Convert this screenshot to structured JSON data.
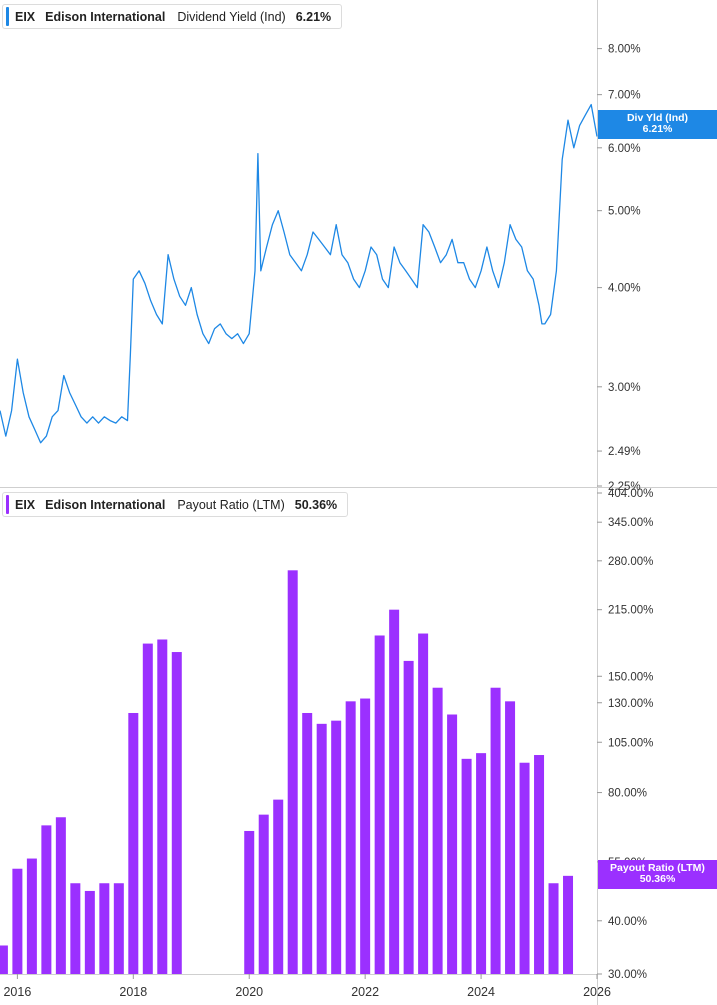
{
  "top_legend": {
    "ticker": "EIX",
    "company": "Edison International",
    "metric": "Dividend Yield (Ind)",
    "value": "6.21%"
  },
  "bottom_legend": {
    "ticker": "EIX",
    "company": "Edison International",
    "metric": "Payout Ratio (LTM)",
    "value": "50.36%"
  },
  "top_callout": {
    "label": "Div Yld (Ind)",
    "value": "6.21%"
  },
  "bottom_callout": {
    "label": "Payout Ratio (LTM)",
    "value": "50.36%"
  },
  "colors": {
    "line": "#1e88e5",
    "bars": "#9b30ff",
    "callout_top": "#1e88e5",
    "callout_bottom": "#9b30ff"
  },
  "chart_data": [
    {
      "type": "line",
      "title": "EIX Edison International Dividend Yield (Ind)",
      "scale": "log",
      "ylim": [
        2.25,
        9.0
      ],
      "y_ticks": [
        8.0,
        7.0,
        6.0,
        5.0,
        4.0,
        3.0,
        2.49,
        2.25
      ],
      "y_tick_labels": [
        "8.00%",
        "7.00%",
        "6.00%",
        "5.00%",
        "4.00%",
        "3.00%",
        "2.49%",
        "2.25%"
      ],
      "series": [
        {
          "name": "Dividend Yield (Ind)",
          "x": [
            2015.7,
            2015.8,
            2015.9,
            2016.0,
            2016.1,
            2016.2,
            2016.3,
            2016.4,
            2016.5,
            2016.6,
            2016.7,
            2016.8,
            2016.9,
            2017.0,
            2017.1,
            2017.2,
            2017.3,
            2017.4,
            2017.5,
            2017.6,
            2017.7,
            2017.8,
            2017.9,
            2017.95,
            2018.0,
            2018.1,
            2018.2,
            2018.3,
            2018.4,
            2018.5,
            2018.6,
            2018.7,
            2018.8,
            2018.9,
            2019.0,
            2019.1,
            2019.2,
            2019.3,
            2019.4,
            2019.5,
            2019.6,
            2019.7,
            2019.8,
            2019.9,
            2020.0,
            2020.1,
            2020.15,
            2020.2,
            2020.3,
            2020.4,
            2020.5,
            2020.6,
            2020.7,
            2020.8,
            2020.9,
            2021.0,
            2021.1,
            2021.2,
            2021.3,
            2021.4,
            2021.5,
            2021.6,
            2021.7,
            2021.8,
            2021.9,
            2022.0,
            2022.1,
            2022.2,
            2022.3,
            2022.4,
            2022.5,
            2022.6,
            2022.7,
            2022.8,
            2022.9,
            2023.0,
            2023.1,
            2023.2,
            2023.3,
            2023.4,
            2023.5,
            2023.6,
            2023.7,
            2023.8,
            2023.9,
            2024.0,
            2024.1,
            2024.2,
            2024.3,
            2024.4,
            2024.5,
            2024.6,
            2024.7,
            2024.8,
            2024.9,
            2025.0,
            2025.05,
            2025.1,
            2025.2,
            2025.3,
            2025.4,
            2025.5,
            2025.6,
            2025.7,
            2025.8,
            2025.9,
            2026.0
          ],
          "values": [
            2.8,
            2.6,
            2.8,
            3.25,
            2.95,
            2.75,
            2.65,
            2.55,
            2.6,
            2.75,
            2.8,
            3.1,
            2.95,
            2.85,
            2.75,
            2.7,
            2.75,
            2.7,
            2.75,
            2.72,
            2.7,
            2.75,
            2.72,
            3.3,
            4.1,
            4.2,
            4.05,
            3.85,
            3.7,
            3.6,
            4.4,
            4.1,
            3.9,
            3.8,
            4.0,
            3.7,
            3.5,
            3.4,
            3.55,
            3.6,
            3.5,
            3.45,
            3.5,
            3.4,
            3.5,
            4.2,
            5.9,
            4.2,
            4.5,
            4.8,
            5.0,
            4.7,
            4.4,
            4.3,
            4.2,
            4.4,
            4.7,
            4.6,
            4.5,
            4.4,
            4.8,
            4.4,
            4.3,
            4.1,
            4.0,
            4.2,
            4.5,
            4.4,
            4.1,
            4.0,
            4.5,
            4.3,
            4.2,
            4.1,
            4.0,
            4.8,
            4.7,
            4.5,
            4.3,
            4.4,
            4.6,
            4.3,
            4.3,
            4.1,
            4.0,
            4.2,
            4.5,
            4.2,
            4.0,
            4.3,
            4.8,
            4.6,
            4.5,
            4.2,
            4.1,
            3.8,
            3.6,
            3.6,
            3.7,
            4.2,
            5.8,
            6.5,
            6.0,
            6.4,
            6.6,
            6.8,
            6.2
          ]
        }
      ],
      "current_value": 6.21
    },
    {
      "type": "bar",
      "title": "EIX Edison International Payout Ratio (LTM)",
      "scale": "log",
      "ylim": [
        30,
        404
      ],
      "y_ticks": [
        404,
        345,
        280,
        215,
        150,
        130,
        105,
        80,
        55,
        40,
        30
      ],
      "y_tick_labels": [
        "404.00%",
        "345.00%",
        "280.00%",
        "215.00%",
        "150.00%",
        "130.00%",
        "105.00%",
        "80.00%",
        "55.00%",
        "40.00%",
        "30.00%"
      ],
      "x_ticks": [
        2016,
        2018,
        2020,
        2022,
        2024,
        2026
      ],
      "x_tick_labels": [
        "2016",
        "2018",
        "2020",
        "2022",
        "2024",
        "2026"
      ],
      "xlim": [
        2015.7,
        2026.0
      ],
      "series": [
        {
          "name": "Payout Ratio (LTM)",
          "x": [
            2015.75,
            2016.0,
            2016.25,
            2016.5,
            2016.75,
            2017.0,
            2017.25,
            2017.5,
            2017.75,
            2018.0,
            2018.25,
            2018.5,
            2018.75,
            2020.0,
            2020.25,
            2020.5,
            2020.75,
            2021.0,
            2021.25,
            2021.5,
            2021.75,
            2022.0,
            2022.25,
            2022.5,
            2022.75,
            2023.0,
            2023.25,
            2023.5,
            2023.75,
            2024.0,
            2024.25,
            2024.5,
            2024.75,
            2025.0,
            2025.25,
            2025.5
          ],
          "values": [
            35,
            53,
            56,
            67,
            70,
            49,
            47,
            49,
            49,
            123,
            179,
            183,
            171,
            65,
            71,
            77,
            266,
            123,
            116,
            118,
            131,
            133,
            187,
            215,
            163,
            189,
            141,
            122,
            96,
            99,
            141,
            131,
            94,
            98,
            49,
            51
          ]
        }
      ],
      "current_value": 50.36
    }
  ]
}
